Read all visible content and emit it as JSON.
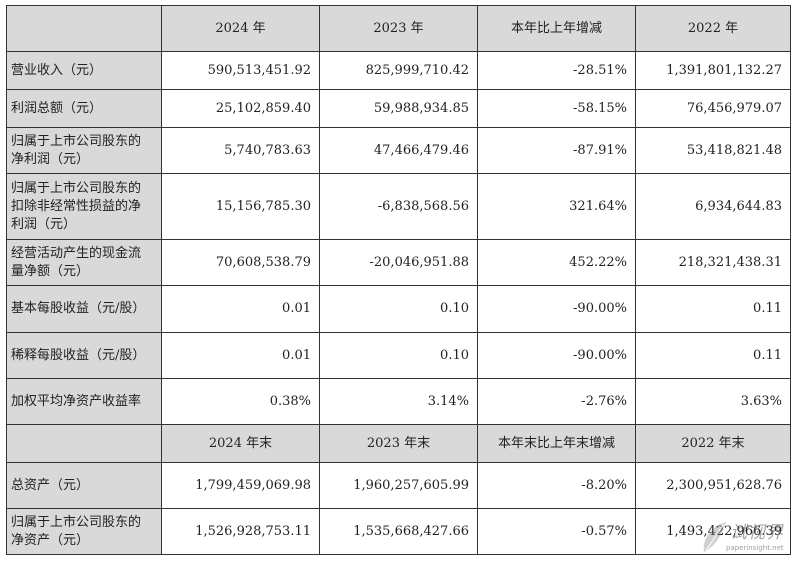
{
  "header1": [
    "2024 年",
    "2023 年",
    "本年比上年增减",
    "2022 年"
  ],
  "rows1": [
    {
      "label": "营业收入（元）",
      "values": [
        "590,513,451.92",
        "825,999,710.42",
        "-28.51%",
        "1,391,801,132.27"
      ]
    },
    {
      "label": "利润总额（元）",
      "values": [
        "25,102,859.40",
        "59,988,934.85",
        "-58.15%",
        "76,456,979.07"
      ]
    },
    {
      "label": "归属于上市公司股东的净利润（元）",
      "values": [
        "5,740,783.63",
        "47,466,479.46",
        "-87.91%",
        "53,418,821.48"
      ]
    },
    {
      "label": "归属于上市公司股东的扣除非经常性损益的净利润（元）",
      "values": [
        "15,156,785.30",
        "-6,838,568.56",
        "321.64%",
        "6,934,644.83"
      ]
    },
    {
      "label": "经营活动产生的现金流量净额（元）",
      "values": [
        "70,608,538.79",
        "-20,046,951.88",
        "452.22%",
        "218,321,438.31"
      ]
    },
    {
      "label": "基本每股收益（元/股）",
      "values": [
        "0.01",
        "0.10",
        "-90.00%",
        "0.11"
      ]
    },
    {
      "label": "稀释每股收益（元/股）",
      "values": [
        "0.01",
        "0.10",
        "-90.00%",
        "0.11"
      ]
    },
    {
      "label": "加权平均净资产收益率",
      "values": [
        "0.38%",
        "3.14%",
        "-2.76%",
        "3.63%"
      ]
    }
  ],
  "header2": [
    "2024 年末",
    "2023 年末",
    "本年末比上年末增减",
    "2022 年末"
  ],
  "rows2": [
    {
      "label": "总资产（元）",
      "values": [
        "1,799,459,069.98",
        "1,960,257,605.99",
        "-8.20%",
        "2,300,951,628.76"
      ]
    },
    {
      "label": "归属于上市公司股东的净资产（元）",
      "values": [
        "1,526,928,753.11",
        "1,535,668,427.66",
        "-0.57%",
        "1,493,422,966.39"
      ]
    }
  ],
  "watermark": {
    "text": "试视界",
    "url": "paperinsight.net"
  }
}
